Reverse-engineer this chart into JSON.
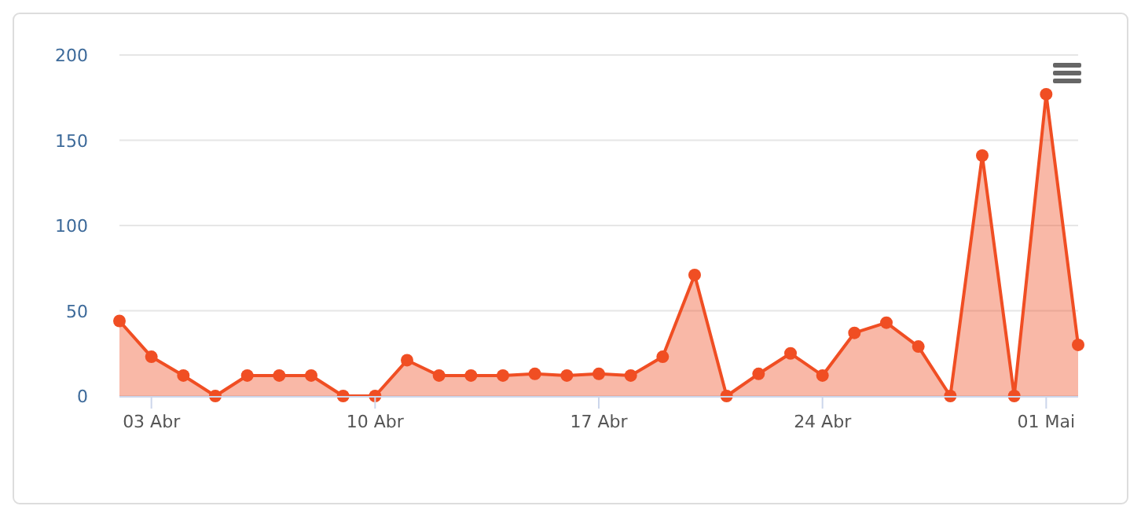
{
  "chart_data": {
    "type": "area",
    "x": [
      "--04-02",
      "--04-03",
      "--04-04",
      "--04-05",
      "--04-06",
      "--04-07",
      "--04-08",
      "--04-09",
      "--04-10",
      "--04-11",
      "--04-12",
      "--04-13",
      "--04-14",
      "--04-15",
      "--04-16",
      "--04-17",
      "--04-18",
      "--04-19",
      "--04-20",
      "--04-21",
      "--04-22",
      "--04-23",
      "--04-24",
      "--04-25",
      "--04-26",
      "--04-27",
      "--04-28",
      "--04-29",
      "--04-30",
      "--05-01",
      "--05-02"
    ],
    "series": [
      {
        "color": "#f04e23",
        "values": [
          44,
          23,
          12,
          0,
          12,
          12,
          12,
          0,
          0,
          21,
          12,
          12,
          12,
          13,
          12,
          13,
          12,
          23,
          71,
          0,
          13,
          25,
          12,
          37,
          43,
          29,
          0,
          141,
          0,
          177,
          30
        ]
      }
    ],
    "xlim": [
      "--04-02",
      "--05-02"
    ],
    "xticks": [
      {
        "value": "--04-03",
        "label": "03 Abr"
      },
      {
        "value": "--04-10",
        "label": "10 Abr"
      },
      {
        "value": "--04-17",
        "label": "17 Abr"
      },
      {
        "value": "--04-24",
        "label": "24 Abr"
      },
      {
        "value": "--05-01",
        "label": "01 Mai"
      }
    ],
    "ylim": [
      0,
      200
    ],
    "yticks": [
      0,
      50,
      100,
      150,
      200
    ],
    "grid": "y",
    "marker": "circle",
    "line_style": "solid"
  }
}
